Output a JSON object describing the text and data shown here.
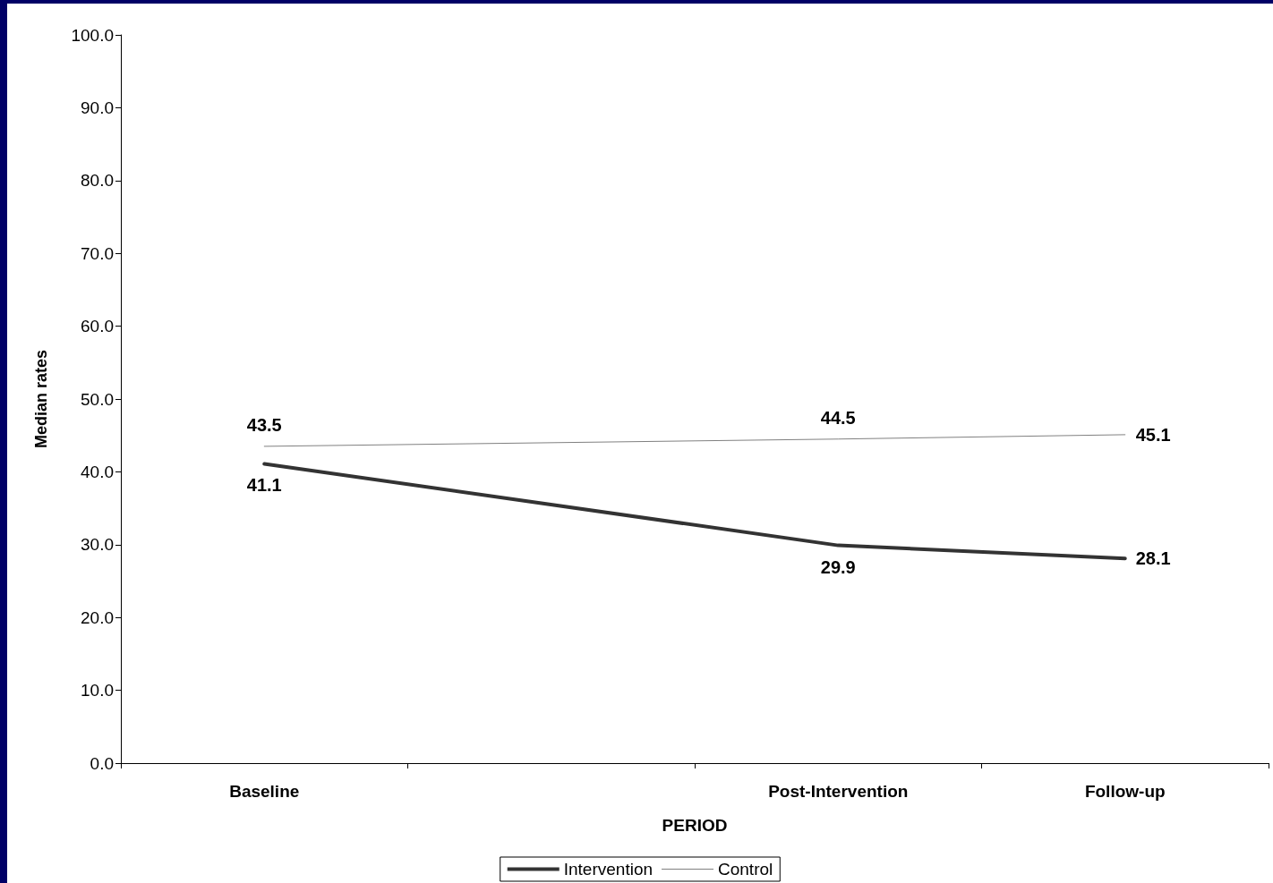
{
  "chart_data": {
    "type": "line",
    "xlabel": "PERIOD",
    "ylabel": "Median rates",
    "categories": [
      "Baseline",
      null,
      "Post-Intervention",
      "Follow-up"
    ],
    "series": [
      {
        "name": "Intervention",
        "color": "#333333",
        "values": [
          41.1,
          null,
          29.9,
          28.1
        ]
      },
      {
        "name": "Control",
        "color": "#808080",
        "values": [
          43.5,
          null,
          44.5,
          45.1
        ]
      }
    ],
    "ylim": [
      0,
      100
    ],
    "yticks": [
      {
        "value": 0,
        "label": "0.0"
      },
      {
        "value": 10,
        "label": "10.0"
      },
      {
        "value": 20,
        "label": "20.0"
      },
      {
        "value": 30,
        "label": "30.0"
      },
      {
        "value": 40,
        "label": "40.0"
      },
      {
        "value": 50,
        "label": "50.0"
      },
      {
        "value": 60,
        "label": "60.0"
      },
      {
        "value": 70,
        "label": "70.0"
      },
      {
        "value": 80,
        "label": "80.0"
      },
      {
        "value": 90,
        "label": "90.0"
      },
      {
        "value": 100,
        "label": "100.0"
      }
    ],
    "data_labels": true,
    "grid": false,
    "legend": "bottom",
    "marker": "none",
    "line_style": "solid"
  }
}
